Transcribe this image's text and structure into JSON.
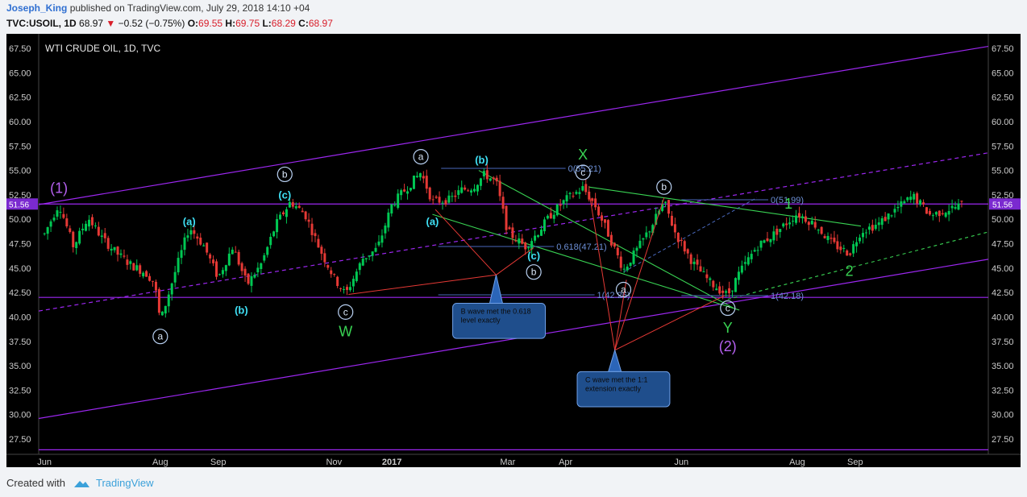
{
  "header": {
    "author": "Joseph_King",
    "published": "published on TradingView.com, July 29, 2018 14:10 +04",
    "symbol": "TVC:USOIL, 1D",
    "last": "68.97",
    "change": "−0.52 (−0.75%)",
    "o_label": "O:",
    "o": "69.55",
    "h_label": "H:",
    "h": "69.75",
    "l_label": "L:",
    "l": "68.29",
    "c_label": "C:",
    "c": "68.97"
  },
  "chart_title": "WTI CRUDE OIL, 1D, TVC",
  "footer": {
    "created_with": "Created with",
    "brand": "TradingView"
  },
  "colors": {
    "up": "#00c853",
    "down": "#e53935",
    "channel": "#9c27f0",
    "fib": "#4a69bd",
    "wave_green": "#39d353",
    "wave_cyan": "#3fe0f5",
    "wave_purple": "#b560f0",
    "callout": "#1f4e8c"
  },
  "chart_data": {
    "type": "candlestick",
    "title": "WTI CRUDE OIL, 1D, TVC",
    "y_ticks": [
      "67.50",
      "65.00",
      "62.50",
      "60.00",
      "57.50",
      "55.00",
      "52.50",
      "50.00",
      "47.50",
      "45.00",
      "42.50",
      "40.00",
      "37.50",
      "35.00",
      "32.50",
      "30.00",
      "27.50"
    ],
    "ylim": [
      25.8,
      69.5
    ],
    "x_ticks": [
      {
        "label": "Jun",
        "x": 1.0
      },
      {
        "label": "Aug",
        "x": 3.0
      },
      {
        "label": "Sep",
        "x": 4.0
      },
      {
        "label": "Nov",
        "x": 6.0
      },
      {
        "label": "2017",
        "x": 7.0
      },
      {
        "label": "Mar",
        "x": 9.0
      },
      {
        "label": "Apr",
        "x": 10.0
      },
      {
        "label": "Jun",
        "x": 12.0
      },
      {
        "label": "Aug",
        "x": 14.0
      },
      {
        "label": "Sep",
        "x": 15.0
      }
    ],
    "xlim": [
      0.9,
      17.3
    ],
    "current_price_label": "51.56",
    "price_path": [
      [
        1.0,
        48.5
      ],
      [
        1.25,
        51.6
      ],
      [
        1.5,
        47.2
      ],
      [
        1.75,
        50.2
      ],
      [
        2.0,
        48.0
      ],
      [
        2.25,
        46.5
      ],
      [
        2.5,
        45.3
      ],
      [
        2.75,
        44.5
      ],
      [
        2.9,
        43.5
      ],
      [
        3.0,
        39.5
      ],
      [
        3.25,
        44.5
      ],
      [
        3.5,
        49.2
      ],
      [
        3.75,
        47.3
      ],
      [
        4.0,
        44.0
      ],
      [
        4.25,
        47.2
      ],
      [
        4.5,
        43.3
      ],
      [
        4.75,
        45.5
      ],
      [
        5.0,
        49.5
      ],
      [
        5.25,
        51.8
      ],
      [
        5.5,
        50.5
      ],
      [
        5.75,
        47.0
      ],
      [
        6.0,
        44.0
      ],
      [
        6.2,
        42.3
      ],
      [
        6.5,
        46.0
      ],
      [
        6.75,
        47.0
      ],
      [
        7.0,
        51.5
      ],
      [
        7.3,
        53.5
      ],
      [
        7.5,
        54.8
      ],
      [
        7.7,
        51.8
      ],
      [
        8.0,
        52.0
      ],
      [
        8.2,
        53.0
      ],
      [
        8.4,
        53.3
      ],
      [
        8.6,
        54.6
      ],
      [
        8.8,
        53.8
      ],
      [
        9.0,
        48.7
      ],
      [
        9.3,
        47.2
      ],
      [
        9.5,
        48.5
      ],
      [
        9.75,
        50.5
      ],
      [
        10.0,
        52.0
      ],
      [
        10.3,
        53.2
      ],
      [
        10.5,
        51.5
      ],
      [
        10.7,
        49.0
      ],
      [
        11.0,
        44.8
      ],
      [
        11.3,
        47.5
      ],
      [
        11.5,
        49.5
      ],
      [
        11.7,
        51.8
      ],
      [
        11.9,
        48.5
      ],
      [
        12.2,
        45.5
      ],
      [
        12.5,
        43.5
      ],
      [
        12.8,
        42.2
      ],
      [
        13.0,
        44.5
      ],
      [
        13.3,
        47.2
      ],
      [
        13.6,
        48.5
      ],
      [
        13.85,
        49.8
      ],
      [
        14.0,
        50.6
      ],
      [
        14.3,
        49.5
      ],
      [
        14.6,
        47.5
      ],
      [
        14.9,
        46.5
      ],
      [
        15.1,
        48.8
      ],
      [
        15.4,
        49.5
      ],
      [
        15.7,
        51.0
      ],
      [
        16.0,
        52.4
      ],
      [
        16.3,
        50.4
      ],
      [
        16.6,
        51.0
      ],
      [
        16.85,
        51.5
      ]
    ],
    "levels": [
      {
        "label": "0(55.21)",
        "value": 55.21,
        "x": [
          7.85,
          10.0
        ]
      },
      {
        "label": "0.618(47.21)",
        "value": 47.21,
        "x": [
          7.8,
          9.8
        ]
      },
      {
        "label": "1(42.26)",
        "value": 42.26,
        "x": [
          7.8,
          10.5
        ]
      },
      {
        "label": "0(51.99)",
        "value": 51.99,
        "x": [
          12.0,
          13.5
        ]
      },
      {
        "label": "1(42.18)",
        "value": 42.18,
        "x": [
          12.0,
          13.5
        ]
      }
    ],
    "horizontal_lines": [
      51.56,
      42.0,
      26.4
    ],
    "channel_lines": [
      {
        "from": [
          0.9,
          51.5
        ],
        "to": [
          17.3,
          67.7
        ],
        "style": "solid"
      },
      {
        "from": [
          0.9,
          29.6
        ],
        "to": [
          17.3,
          45.9
        ],
        "style": "solid"
      },
      {
        "from": [
          0.9,
          40.6
        ],
        "to": [
          17.3,
          56.8
        ],
        "style": "dashed"
      }
    ],
    "wave_labels": [
      {
        "text": "(1)",
        "x": 1.25,
        "y": 53.2,
        "style": "purple"
      },
      {
        "text": "a",
        "x": 3.0,
        "y": 38.0,
        "style": "circle"
      },
      {
        "text": "(a)",
        "x": 3.5,
        "y": 49.9,
        "style": "cyan"
      },
      {
        "text": "(b)",
        "x": 4.4,
        "y": 40.8,
        "style": "cyan"
      },
      {
        "text": "b",
        "x": 5.15,
        "y": 54.6,
        "style": "circle"
      },
      {
        "text": "(c)",
        "x": 5.15,
        "y": 52.6,
        "style": "cyan"
      },
      {
        "text": "c",
        "x": 6.2,
        "y": 40.5,
        "style": "circle"
      },
      {
        "text": "W",
        "x": 6.2,
        "y": 38.5,
        "style": "green"
      },
      {
        "text": "a",
        "x": 7.5,
        "y": 56.4,
        "style": "circle"
      },
      {
        "text": "(a)",
        "x": 7.7,
        "y": 49.9,
        "style": "cyan"
      },
      {
        "text": "(b)",
        "x": 8.55,
        "y": 56.2,
        "style": "cyan"
      },
      {
        "text": "(c)",
        "x": 9.45,
        "y": 46.4,
        "style": "cyan"
      },
      {
        "text": "b",
        "x": 9.45,
        "y": 44.6,
        "style": "circle"
      },
      {
        "text": "X",
        "x": 10.3,
        "y": 56.6,
        "style": "green"
      },
      {
        "text": "c",
        "x": 10.3,
        "y": 54.8,
        "style": "circle"
      },
      {
        "text": "a",
        "x": 11.0,
        "y": 42.8,
        "style": "circle"
      },
      {
        "text": "b",
        "x": 11.7,
        "y": 53.3,
        "style": "circle"
      },
      {
        "text": "c",
        "x": 12.8,
        "y": 40.9,
        "style": "circle"
      },
      {
        "text": "Y",
        "x": 12.8,
        "y": 38.9,
        "style": "green"
      },
      {
        "text": "(2)",
        "x": 12.8,
        "y": 37.0,
        "style": "purple"
      },
      {
        "text": "1",
        "x": 13.85,
        "y": 51.6,
        "style": "green"
      },
      {
        "text": "2",
        "x": 14.9,
        "y": 44.7,
        "style": "green"
      }
    ],
    "callouts": [
      {
        "text": [
          "B wave met the 0.618",
          "level exactly"
        ],
        "x": [
          8.05,
          9.65
        ],
        "y": [
          41.4,
          37.8
        ],
        "tail": [
          8.8,
          44.3
        ]
      },
      {
        "text": [
          "C wave met the 1:1",
          "extension exactly"
        ],
        "x": [
          10.2,
          11.8
        ],
        "y": [
          34.4,
          30.8
        ],
        "tail": [
          10.85,
          36.6
        ]
      }
    ]
  }
}
